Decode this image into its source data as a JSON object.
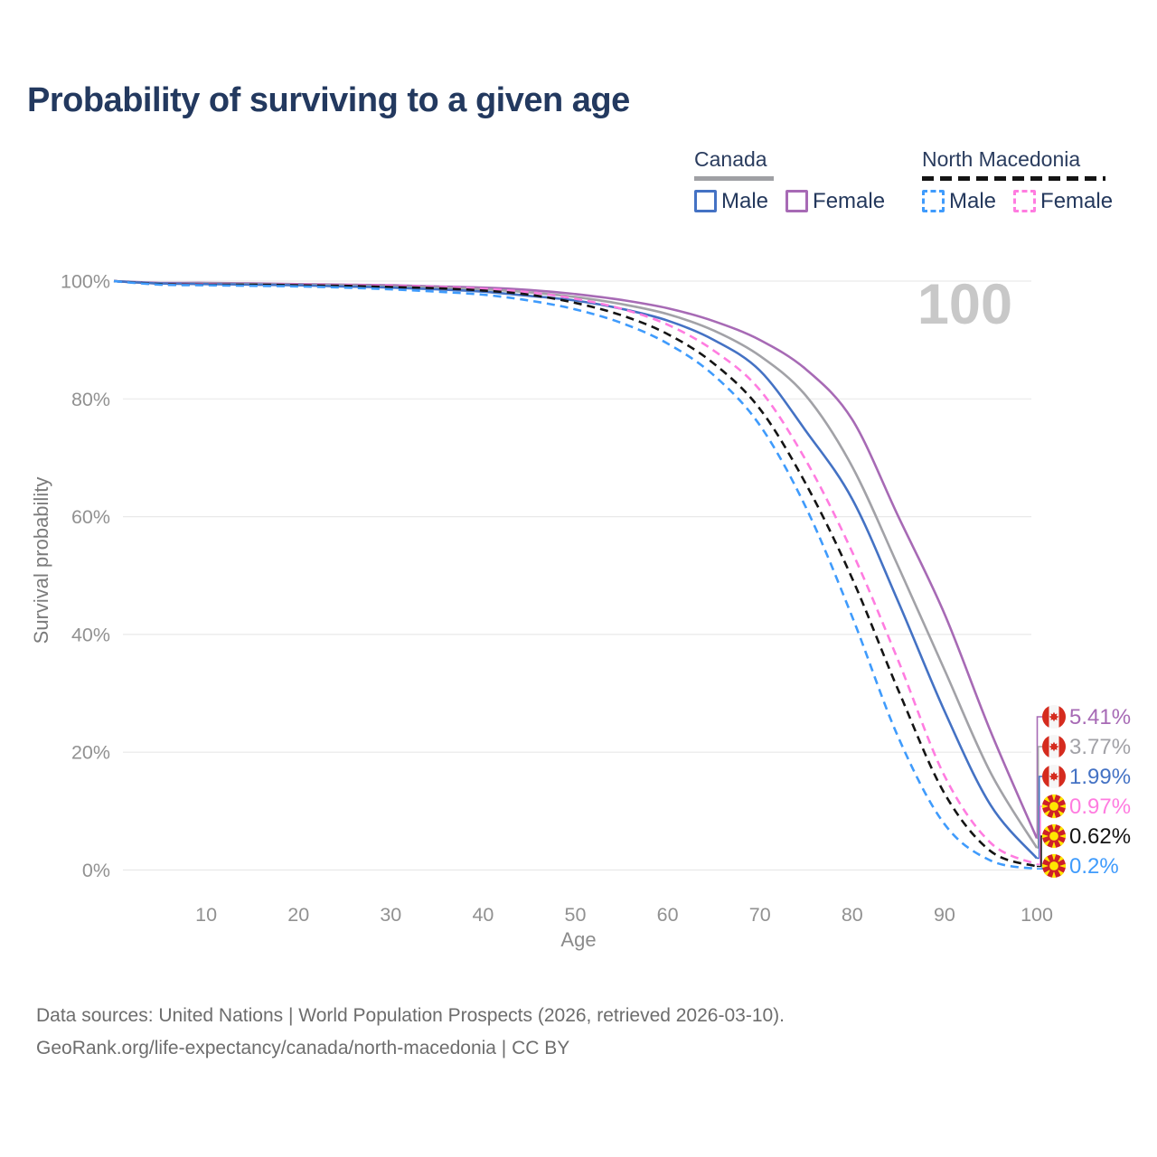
{
  "title": "Probability of surviving to a given age",
  "watermark": "100",
  "legend": {
    "canada": {
      "label": "Canada",
      "male": "Male",
      "female": "Female"
    },
    "north_macedonia": {
      "label": "North Macedonia",
      "male": "Male",
      "female": "Female"
    }
  },
  "colors": {
    "canada_underline": "#9fa0a4",
    "north_macedonia_underline": "#141414",
    "title": "#23395f",
    "watermark": "#c8c8c8",
    "gridline": "#e9e9e9",
    "tick_text": "#919191"
  },
  "footer": {
    "line1": "Data sources: United Nations | World Population Prospects (2026, retrieved 2026-03-10).",
    "line2": "GeoRank.org/life-expectancy/canada/north-macedonia | CC BY"
  },
  "chart_data": {
    "type": "line",
    "title": "Probability of surviving to a given age",
    "xlabel": "Age",
    "ylabel": "Survival probability",
    "xlim": [
      0,
      100
    ],
    "ylim": [
      0,
      100
    ],
    "grid": "horizontal",
    "legend_position": "top-right",
    "xticks": [
      10,
      20,
      30,
      40,
      50,
      60,
      70,
      80,
      90,
      100
    ],
    "yticks": [
      {
        "value": 0,
        "label": "0%"
      },
      {
        "value": 20,
        "label": "20%"
      },
      {
        "value": 40,
        "label": "40%"
      },
      {
        "value": 60,
        "label": "60%"
      },
      {
        "value": 80,
        "label": "80%"
      },
      {
        "value": 100,
        "label": "100%"
      }
    ],
    "x": [
      0,
      5,
      10,
      15,
      20,
      25,
      30,
      35,
      40,
      45,
      50,
      55,
      60,
      65,
      70,
      75,
      80,
      85,
      90,
      95,
      100
    ],
    "series": [
      {
        "id": "ca-f",
        "name": "Canada Female",
        "country": "Canada",
        "style": "solid",
        "color": "#a76ab5",
        "values": [
          100,
          99.7,
          99.7,
          99.6,
          99.5,
          99.4,
          99.3,
          99.1,
          98.9,
          98.5,
          97.8,
          96.8,
          95.4,
          93.2,
          90.0,
          85.0,
          76.5,
          60.0,
          43.5,
          23.5,
          5.41
        ]
      },
      {
        "id": "ca-all",
        "name": "Canada Combined",
        "country": "Canada",
        "style": "solid",
        "color": "#a2a2a7",
        "values": [
          100,
          99.6,
          99.6,
          99.5,
          99.4,
          99.3,
          99.1,
          98.9,
          98.6,
          98.1,
          97.3,
          96.1,
          94.4,
          91.6,
          87.3,
          80.5,
          68.5,
          51.5,
          34.0,
          16.5,
          3.77
        ]
      },
      {
        "id": "ca-m",
        "name": "Canada Male",
        "country": "Canada",
        "style": "solid",
        "color": "#4472c4",
        "values": [
          100,
          99.6,
          99.5,
          99.4,
          99.3,
          99.1,
          98.9,
          98.6,
          98.2,
          97.5,
          96.7,
          95.3,
          93.3,
          90.0,
          84.8,
          74.5,
          63.0,
          45.5,
          27.0,
          11.0,
          1.99
        ]
      },
      {
        "id": "nm-f",
        "name": "North Macedonia Female",
        "country": "North Macedonia",
        "style": "dashed",
        "color": "#ff7ce0",
        "values": [
          100,
          99.5,
          99.5,
          99.4,
          99.4,
          99.3,
          99.2,
          99.0,
          98.7,
          98.1,
          97.0,
          95.3,
          92.6,
          88.2,
          81.5,
          69.5,
          54.0,
          35.5,
          16.0,
          4.6,
          0.97
        ]
      },
      {
        "id": "nm-all",
        "name": "North Macedonia Combined",
        "country": "North Macedonia",
        "style": "dashed",
        "color": "#141414",
        "values": [
          100,
          99.5,
          99.4,
          99.4,
          99.3,
          99.2,
          99.0,
          98.8,
          98.4,
          97.7,
          96.3,
          94.2,
          91.0,
          86.0,
          78.3,
          65.5,
          49.5,
          30.5,
          13.0,
          3.2,
          0.62
        ]
      },
      {
        "id": "nm-m",
        "name": "North Macedonia Male",
        "country": "North Macedonia",
        "style": "dashed",
        "color": "#3f9bfc",
        "values": [
          100,
          99.4,
          99.3,
          99.2,
          99.1,
          98.9,
          98.6,
          98.2,
          97.7,
          96.7,
          95.2,
          92.9,
          89.4,
          84.0,
          75.5,
          61.5,
          43.0,
          22.5,
          7.8,
          1.6,
          0.2
        ]
      }
    ],
    "end_labels": [
      {
        "text": "5.41%",
        "value": 5.41,
        "flag": "canada",
        "color": "#a76ab5",
        "series": "ca-f"
      },
      {
        "text": "3.77%",
        "value": 3.77,
        "flag": "canada",
        "color": "#a2a2a7",
        "series": "ca-all"
      },
      {
        "text": "1.99%",
        "value": 1.99,
        "flag": "canada",
        "color": "#4472c4",
        "series": "ca-m"
      },
      {
        "text": "0.97%",
        "value": 0.97,
        "flag": "north-macedonia",
        "color": "#ff7ce0",
        "series": "nm-f"
      },
      {
        "text": "0.62%",
        "value": 0.62,
        "flag": "north-macedonia",
        "color": "#141414",
        "series": "nm-all"
      },
      {
        "text": "0.2%",
        "value": 0.2,
        "flag": "north-macedonia",
        "color": "#3f9bfc",
        "series": "nm-m"
      }
    ]
  }
}
